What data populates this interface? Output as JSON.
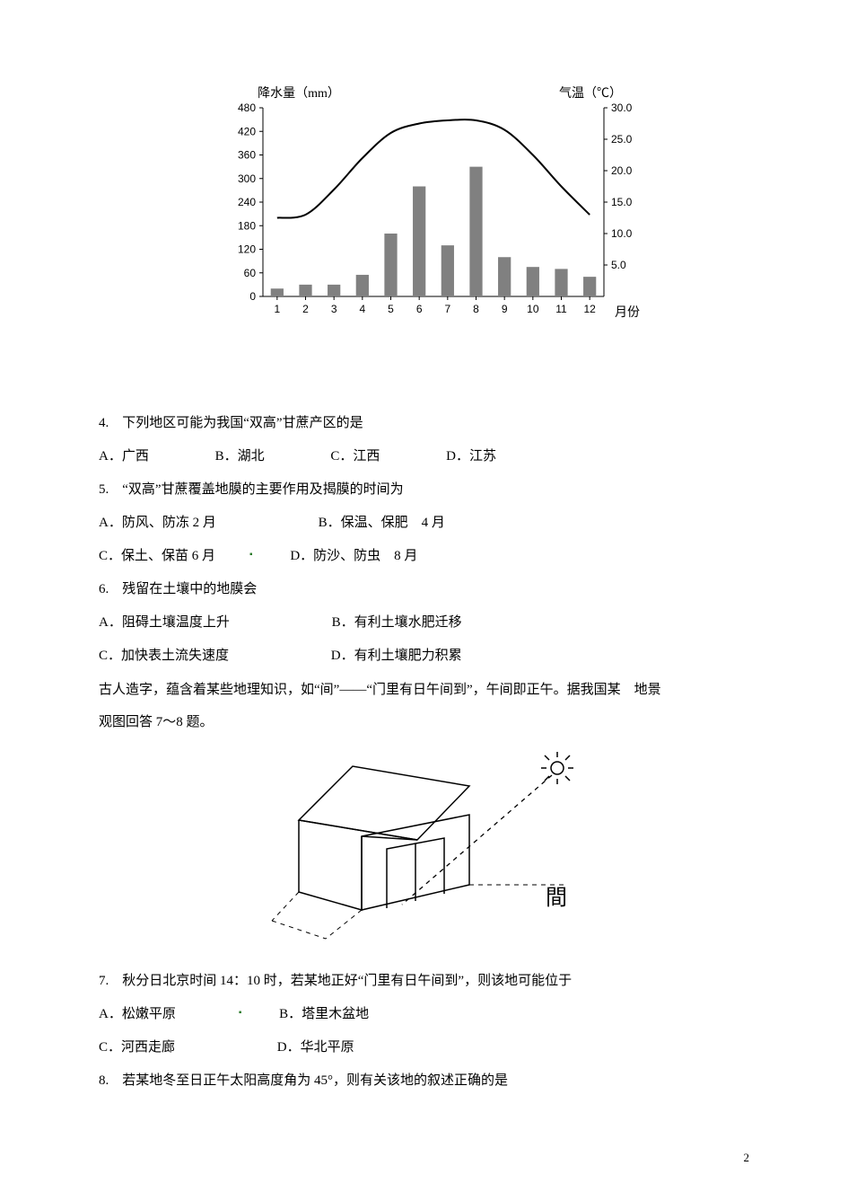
{
  "chart": {
    "type": "bar+line",
    "left_axis_label": "降水量（mm）",
    "right_axis_label": "气温（℃）",
    "x_axis_label": "月份",
    "months": [
      "1",
      "2",
      "3",
      "4",
      "5",
      "6",
      "7",
      "8",
      "9",
      "10",
      "11",
      "12"
    ],
    "precip_values": [
      20,
      30,
      30,
      55,
      160,
      280,
      130,
      330,
      100,
      75,
      70,
      50
    ],
    "temp_values": [
      12.5,
      13.0,
      17.0,
      22.0,
      26.0,
      27.5,
      28.0,
      28.0,
      26.5,
      22.5,
      17.5,
      13.0
    ],
    "left_ylim": [
      0,
      480
    ],
    "left_ytick_step": 60,
    "left_yticks": [
      "0",
      "60",
      "120",
      "180",
      "240",
      "300",
      "360",
      "420",
      "480"
    ],
    "right_ylim": [
      0,
      30
    ],
    "right_ytick_step": 5,
    "right_yticks": [
      "5.0",
      "10.0",
      "15.0",
      "20.0",
      "25.0",
      "30.0"
    ],
    "bar_color": "#808080",
    "bar_width": 0.45,
    "line_color": "#000000",
    "line_width": 2,
    "axis_color": "#000000",
    "tick_font_size": 12,
    "label_font_size": 14,
    "background": "#ffffff"
  },
  "q4": {
    "stem": "4.　下列地区可能为我国“双高”甘蔗产区的是",
    "A": "A．广西",
    "B": "B．湖北",
    "C": "C．江西",
    "D": "D．江苏"
  },
  "q5": {
    "stem": "5.　“双高”甘蔗覆盖地膜的主要作用及揭膜的时间为",
    "A": "A．防风、防冻 2 月",
    "B": "B．保温、保肥　4 月",
    "C": "C．保土、保苗 6 月",
    "D": "D．防沙、防虫　8 月"
  },
  "q6": {
    "stem": "6.　残留在土壤中的地膜会",
    "A": "A．阻碍土壤温度上升",
    "B": "B．有利土壤水肥迁移",
    "C": "C．加快表土流失速度",
    "D": "D．有利土壤肥力积累"
  },
  "intro78": {
    "line1": "古人造字，蕴含着某些地理知识，如“间”——“门里有日午间到”，午间即正午。据我国某　地景",
    "line2": "观图回答 7～8 题。"
  },
  "house": {
    "type": "diagram",
    "label": "間",
    "label_fontsize": 22,
    "sun_color": "#000000",
    "line_color": "#000000",
    "dash": "4,4"
  },
  "q7": {
    "stem": "7.　秋分日北京时间 14：10 时，若某地正好“门里有日午间到”，则该地可能位于",
    "A": "A．松嫩平原",
    "B": "B．塔里木盆地",
    "C": "C．河西走廊",
    "D": "D．华北平原"
  },
  "q8": {
    "stem": "8.　若某地冬至日正午太阳高度角为 45°，则有关该地的叙述正确的是"
  },
  "page_number": "2"
}
